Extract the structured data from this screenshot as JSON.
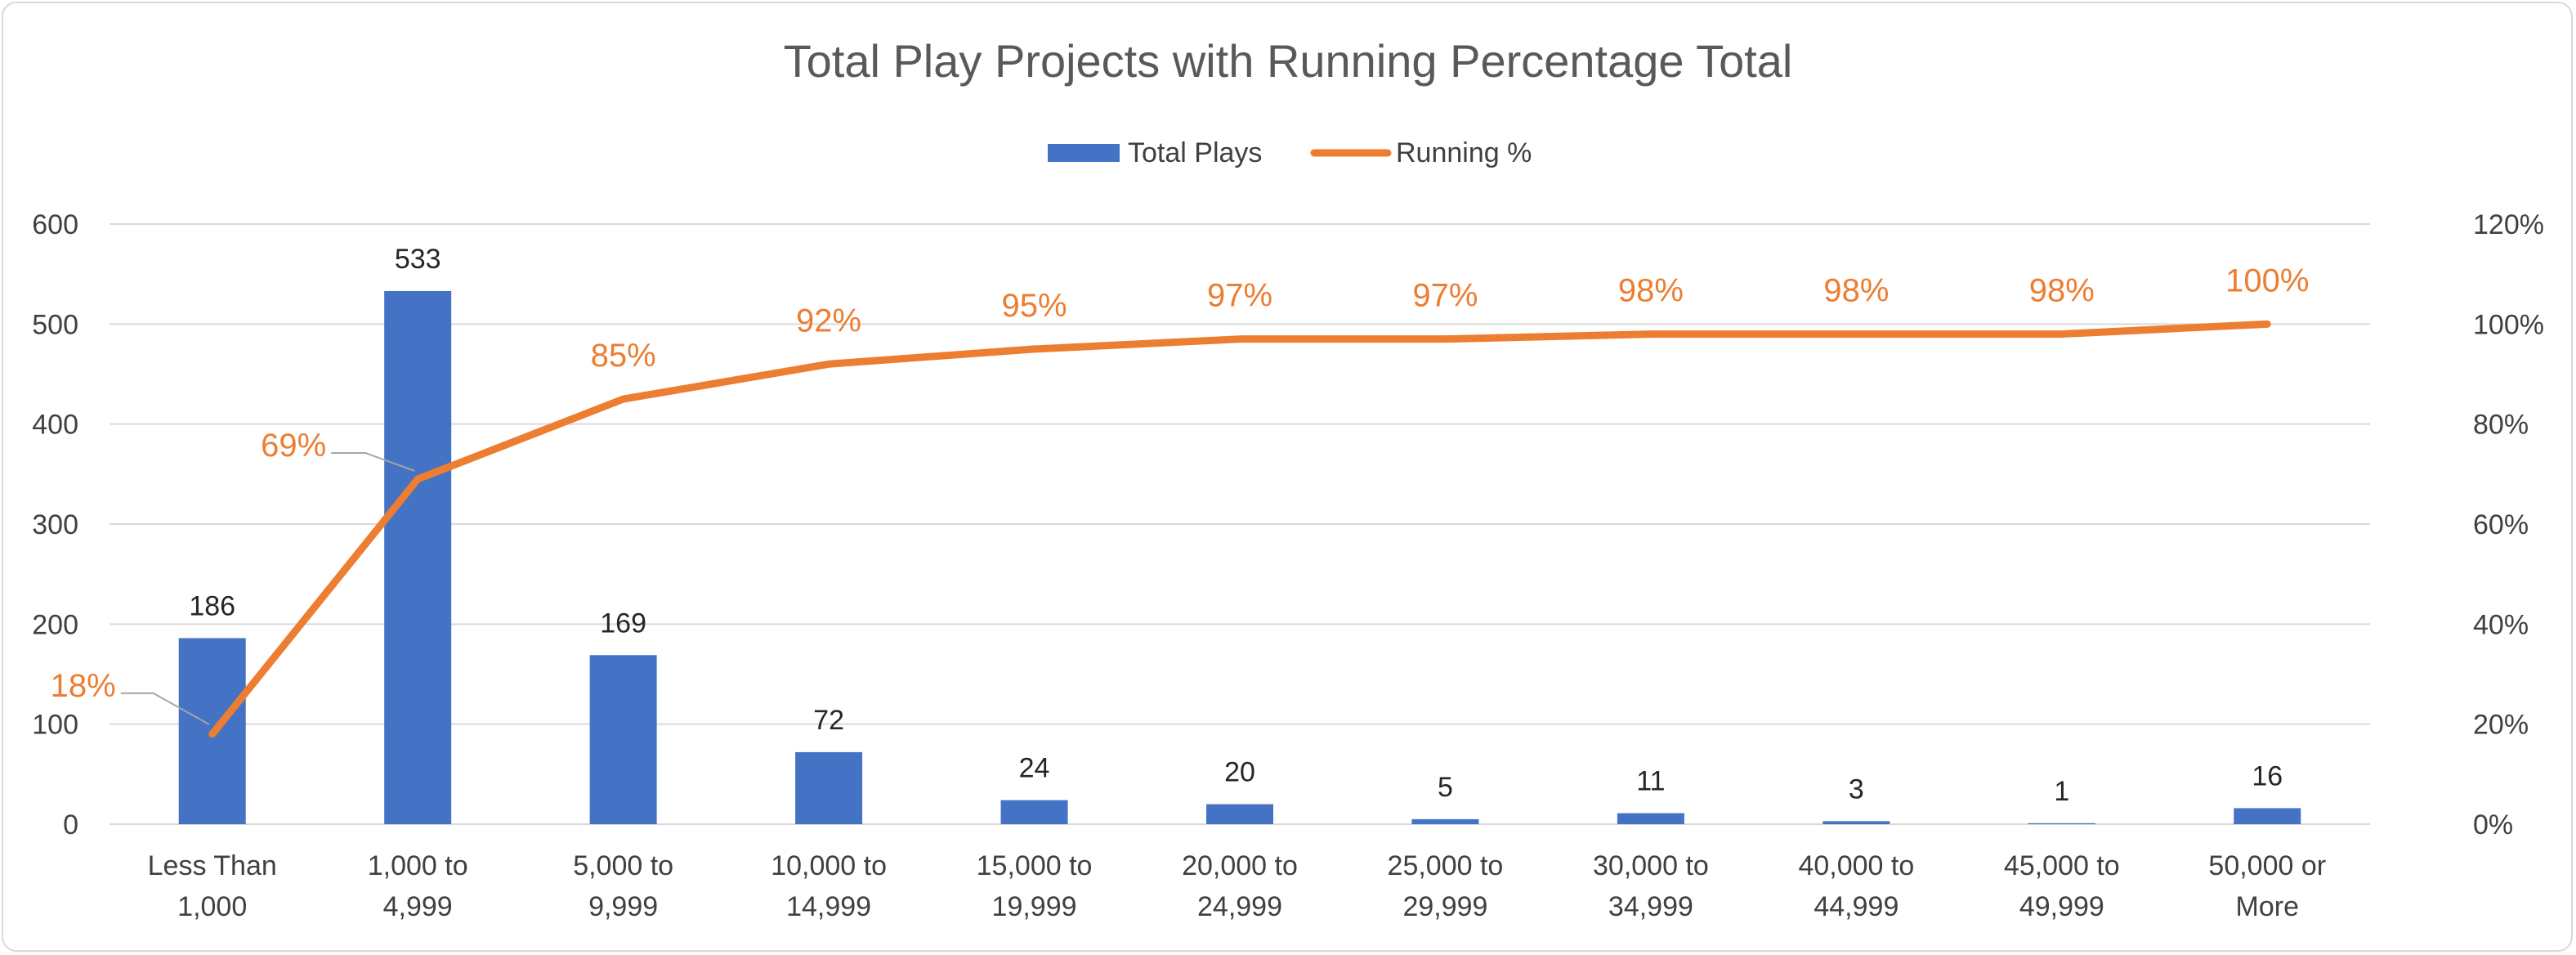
{
  "chart_data": {
    "type": "bar",
    "title": "Total Play Projects with Running Percentage Total",
    "categories": [
      [
        "Less Than",
        "1,000"
      ],
      [
        "1,000 to",
        "4,999"
      ],
      [
        "5,000 to",
        "9,999"
      ],
      [
        "10,000 to",
        "14,999"
      ],
      [
        "15,000 to",
        "19,999"
      ],
      [
        "20,000 to",
        "24,999"
      ],
      [
        "25,000 to",
        "29,999"
      ],
      [
        "30,000 to",
        "34,999"
      ],
      [
        "40,000 to",
        "44,999"
      ],
      [
        "45,000 to",
        "49,999"
      ],
      [
        "50,000 or",
        "More"
      ]
    ],
    "series": [
      {
        "name": "Total Plays",
        "type": "bar",
        "axis": "left",
        "color": "#4472c4",
        "values": [
          186,
          533,
          169,
          72,
          24,
          20,
          5,
          11,
          3,
          1,
          16
        ],
        "labels": [
          "186",
          "533",
          "169",
          "72",
          "24",
          "20",
          "5",
          "11",
          "3",
          "1",
          "16"
        ]
      },
      {
        "name": "Running %",
        "type": "line",
        "axis": "right",
        "color": "#ed7d31",
        "values": [
          18,
          69,
          85,
          92,
          95,
          97,
          97,
          98,
          98,
          98,
          100
        ],
        "labels": [
          "18%",
          "69%",
          "85%",
          "92%",
          "95%",
          "97%",
          "97%",
          "98%",
          "98%",
          "98%",
          "100%"
        ]
      }
    ],
    "y_left": {
      "min": 0,
      "max": 600,
      "ticks": [
        "0",
        "100",
        "200",
        "300",
        "400",
        "500",
        "600"
      ]
    },
    "y_right": {
      "min": 0,
      "max": 120,
      "ticks": [
        "0%",
        "20%",
        "40%",
        "60%",
        "80%",
        "100%",
        "120%"
      ]
    },
    "grid": true,
    "legend": "top-center",
    "xlabel": "",
    "ylabel": ""
  }
}
